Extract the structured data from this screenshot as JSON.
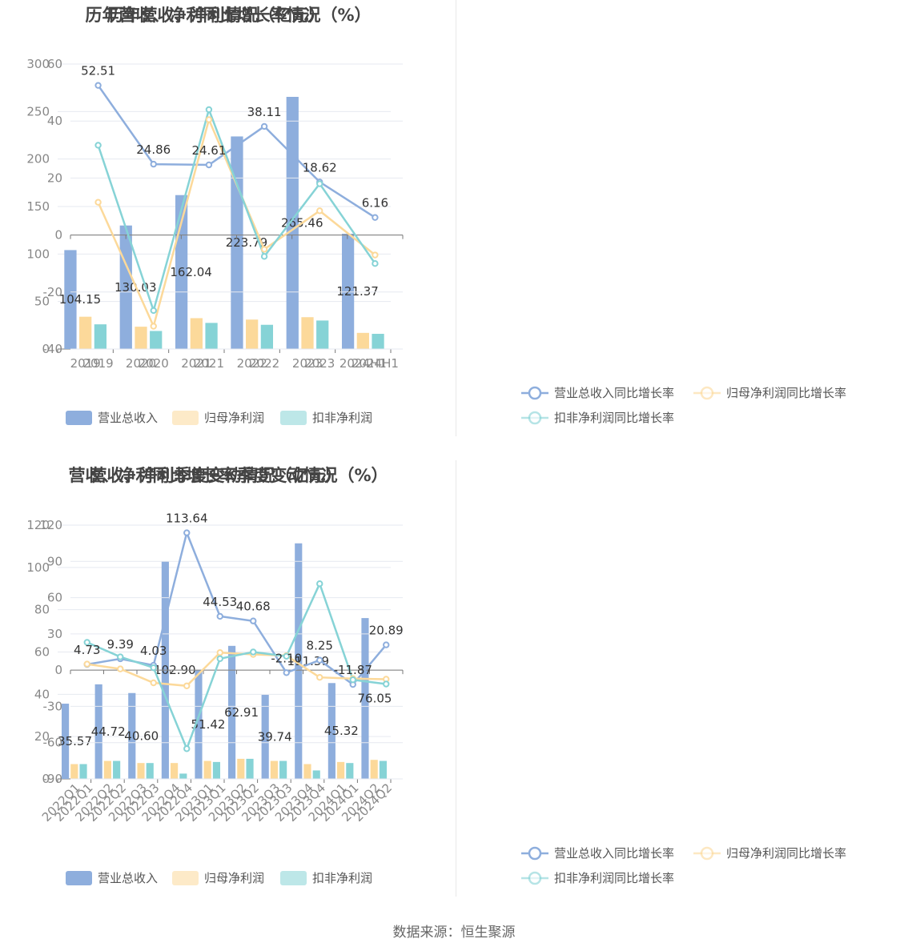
{
  "source": "数据来源：恒生聚源",
  "chart_data": [
    {
      "type": "bar",
      "title": "历年营收、净利情况（亿元）",
      "categories": [
        "2019",
        "2020",
        "2021",
        "2022",
        "2023",
        "2024H1"
      ],
      "ylim": [
        0,
        300
      ],
      "yticks": [
        0,
        50,
        100,
        150,
        200,
        250,
        300
      ],
      "series": [
        {
          "name": "营业总收入",
          "values": [
            104.15,
            130.03,
            162.04,
            223.79,
            265.46,
            121.37
          ],
          "color": "#8eaedd",
          "labeled": true
        },
        {
          "name": "归母净利润",
          "values": [
            34,
            23.5,
            32.5,
            31,
            33.5,
            17
          ],
          "color": "#fcd99a",
          "labeled": false
        },
        {
          "name": "扣非净利润",
          "values": [
            26,
            19,
            27.5,
            25.5,
            30,
            16
          ],
          "color": "#86d3d6",
          "labeled": false
        }
      ],
      "data_labels": [
        "104.15",
        "130.03",
        "162.04",
        "223.79",
        "265.46",
        "121.37"
      ],
      "grid": true,
      "legend_position": "bottom"
    },
    {
      "type": "line",
      "title": "历年营收、净利同比增长率情况（%）",
      "categories": [
        "2019",
        "2020",
        "2021",
        "2022",
        "2023",
        "2024H1"
      ],
      "ylim": [
        -40,
        60
      ],
      "yticks": [
        -40,
        -20,
        0,
        20,
        40,
        60
      ],
      "series": [
        {
          "name": "营业总收入同比增长率",
          "values": [
            52.51,
            24.86,
            24.61,
            38.11,
            18.62,
            6.16
          ],
          "color": "#8eaedd",
          "labeled": true
        },
        {
          "name": "归母净利润同比增长率",
          "values": [
            11.5,
            -32,
            40.5,
            -5,
            8.5,
            -7
          ],
          "color": "#fcd99a",
          "labeled": false
        },
        {
          "name": "扣非净利润同比增长率",
          "values": [
            31.5,
            -26.5,
            44,
            -7.5,
            18,
            -10
          ],
          "color": "#86d3d6",
          "labeled": false
        }
      ],
      "data_labels": [
        "52.51",
        "24.86",
        "24.61",
        "38.11",
        "18.62",
        "6.16"
      ],
      "grid": true,
      "legend_position": "bottom"
    },
    {
      "type": "bar",
      "title": "营收、净利季度变动情况（亿元）",
      "categories": [
        "2022Q1",
        "2022Q2",
        "2022Q3",
        "2022Q4",
        "2023Q1",
        "2023Q2",
        "2023Q3",
        "2023Q4",
        "2024Q1",
        "2024Q2"
      ],
      "ylim": [
        0,
        120
      ],
      "yticks": [
        0,
        20,
        40,
        60,
        80,
        100,
        120
      ],
      "series": [
        {
          "name": "营业总收入",
          "values": [
            35.57,
            44.72,
            40.6,
            102.9,
            51.42,
            62.91,
            39.74,
            111.39,
            45.32,
            76.05
          ],
          "color": "#8eaedd",
          "labeled": true
        },
        {
          "name": "归母净利润",
          "values": [
            7,
            8.5,
            7.5,
            7.5,
            8.5,
            9.5,
            8.5,
            7,
            8,
            9
          ],
          "color": "#fcd99a",
          "labeled": false
        },
        {
          "name": "扣非净利润",
          "values": [
            7,
            8.5,
            7.5,
            2.5,
            8,
            9.5,
            8.5,
            4,
            7.5,
            8.5
          ],
          "color": "#86d3d6",
          "labeled": false
        }
      ],
      "data_labels": [
        "35.57",
        "44.72",
        "40.60",
        "102.90",
        "51.42",
        "62.91",
        "39.74",
        "111.39",
        "45.32",
        "76.05"
      ],
      "grid": true,
      "legend_position": "bottom"
    },
    {
      "type": "line",
      "title": "营收、净利同比增长率季度变动情况（%）",
      "categories": [
        "2022Q1",
        "2022Q2",
        "2022Q3",
        "2022Q4",
        "2023Q1",
        "2023Q2",
        "2023Q3",
        "2023Q4",
        "2024Q1",
        "2024Q2"
      ],
      "ylim": [
        -90,
        120
      ],
      "yticks": [
        -90,
        -60,
        -30,
        0,
        30,
        60,
        90,
        120
      ],
      "series": [
        {
          "name": "营业总收入同比增长率",
          "values": [
            4.73,
            9.39,
            4.03,
            113.64,
            44.53,
            40.68,
            -2.1,
            8.25,
            -11.87,
            20.89
          ],
          "color": "#8eaedd",
          "labeled": true
        },
        {
          "name": "归母净利润同比增长率",
          "values": [
            5,
            1,
            -10.5,
            -13,
            14.5,
            13,
            12,
            -6,
            -7,
            -7.5
          ],
          "color": "#fcd99a",
          "labeled": false
        },
        {
          "name": "扣非净利润同比增长率",
          "values": [
            23,
            11,
            2,
            -65,
            9.5,
            15,
            11.5,
            71.5,
            -8,
            -11.5
          ],
          "color": "#86d3d6",
          "labeled": false
        }
      ],
      "data_labels": [
        "4.73",
        "9.39",
        "4.03",
        "113.64",
        "44.53",
        "40.68",
        "-2.10",
        "8.25",
        "-11.87",
        "20.89"
      ],
      "grid": true,
      "legend_position": "bottom"
    }
  ]
}
